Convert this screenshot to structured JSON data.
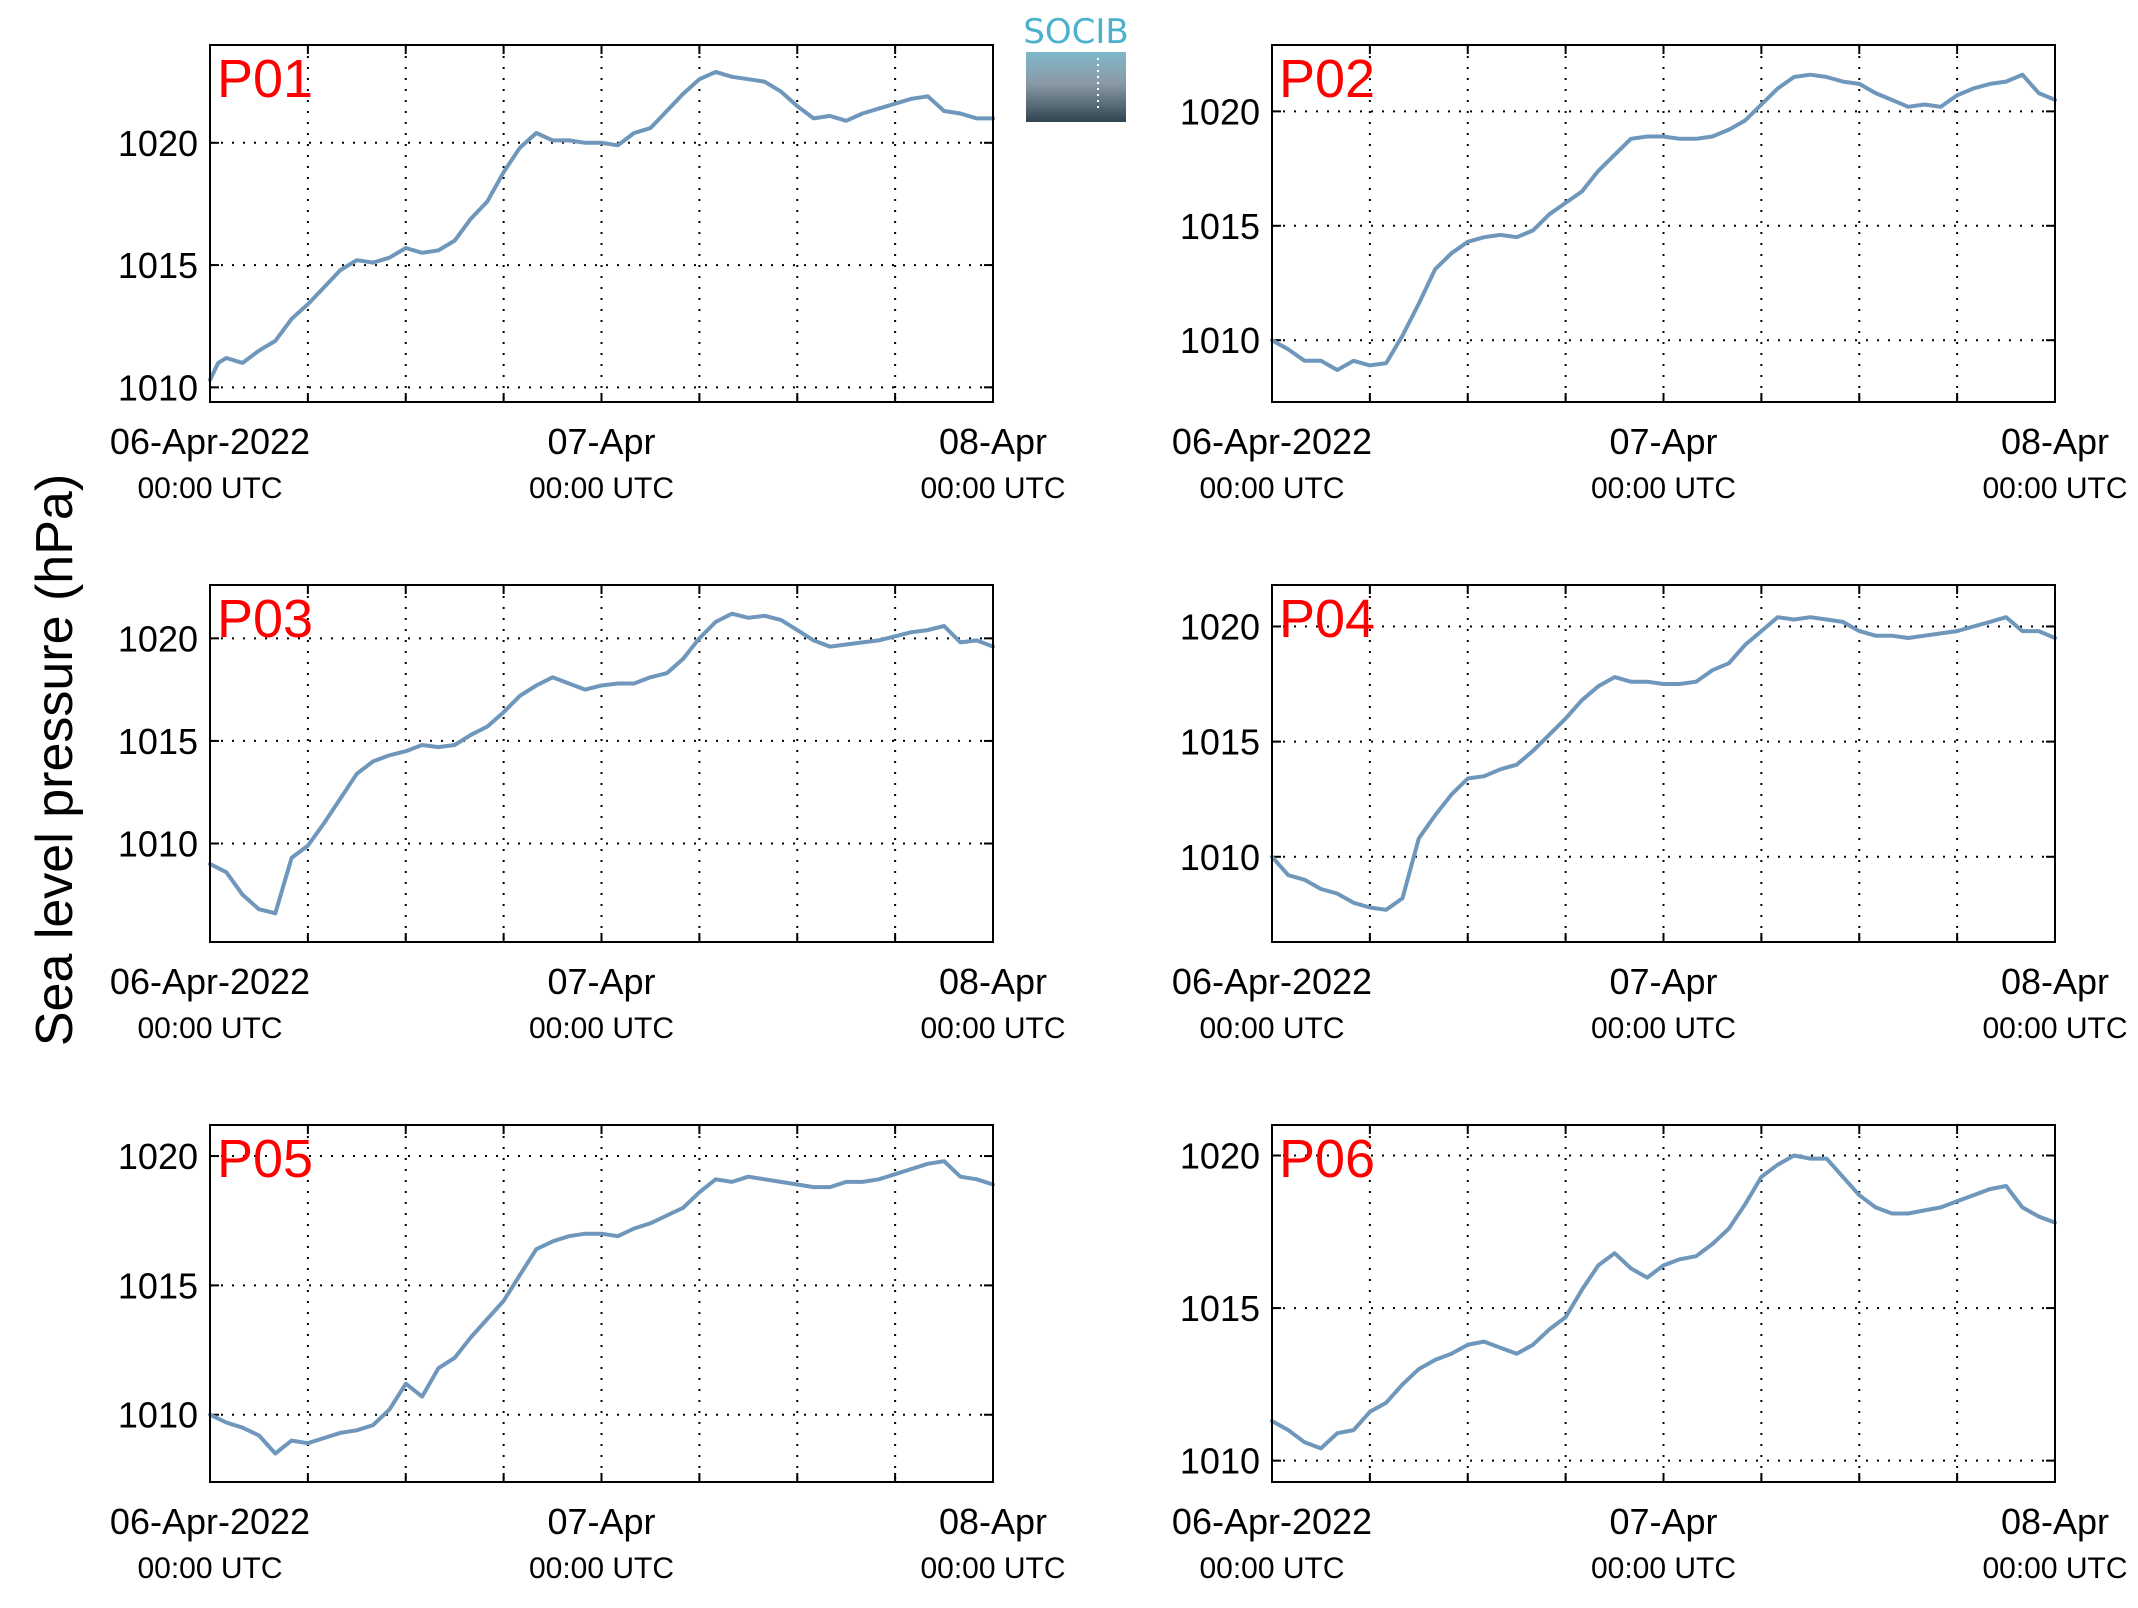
{
  "figure": {
    "ylabel": "Sea level pressure (hPa)",
    "logo_text": "SOCIB",
    "colors": {
      "line": "#6f97bb",
      "panel_label": "#ff0000",
      "axis": "#000000"
    }
  },
  "chart_data": [
    {
      "type": "line",
      "title": "P01",
      "x_ticks": [
        {
          "value": "2022-04-06T00:00Z",
          "label": "06-Apr-2022",
          "sublabel": "00:00 UTC"
        },
        {
          "value": "2022-04-07T00:00Z",
          "label": "07-Apr",
          "sublabel": "00:00 UTC"
        },
        {
          "value": "2022-04-08T00:00Z",
          "label": "08-Apr",
          "sublabel": "00:00 UTC"
        }
      ],
      "x_grid_hours": [
        6,
        12,
        18,
        24,
        30,
        36,
        42
      ],
      "xlim": [
        "2022-04-06T00:00Z",
        "2022-04-08T00:00Z"
      ],
      "ylim": [
        1009.4,
        1024.0
      ],
      "yticks": [
        1010,
        1015,
        1020
      ],
      "grid": true,
      "series": [
        {
          "x_hours": [
            0,
            0.5,
            1,
            2,
            3,
            4,
            5,
            6,
            7,
            8,
            9,
            10,
            11,
            12,
            13,
            14,
            15,
            16,
            17,
            18,
            19,
            20,
            21,
            22,
            23,
            24,
            25,
            26,
            27,
            28,
            29,
            30,
            31,
            32,
            33,
            34,
            35,
            36,
            37,
            38,
            39,
            40,
            41,
            42,
            43,
            44,
            45,
            46,
            47,
            48
          ],
          "values": [
            1010.3,
            1011.0,
            1011.2,
            1011.0,
            1011.5,
            1011.9,
            1012.8,
            1013.4,
            1014.1,
            1014.8,
            1015.2,
            1015.1,
            1015.3,
            1015.7,
            1015.5,
            1015.6,
            1016.0,
            1016.9,
            1017.6,
            1018.8,
            1019.8,
            1020.4,
            1020.1,
            1020.1,
            1020.0,
            1020.0,
            1019.9,
            1020.4,
            1020.6,
            1021.3,
            1022.0,
            1022.6,
            1022.9,
            1022.7,
            1022.6,
            1022.5,
            1022.1,
            1021.5,
            1021.0,
            1021.1,
            1020.9,
            1021.2,
            1021.4,
            1021.6,
            1021.8,
            1021.9,
            1021.3,
            1021.2,
            1021.0,
            1021.0
          ]
        }
      ]
    },
    {
      "type": "line",
      "title": "P02",
      "x_ticks": [
        {
          "value": "2022-04-06T00:00Z",
          "label": "06-Apr-2022",
          "sublabel": "00:00 UTC"
        },
        {
          "value": "2022-04-07T00:00Z",
          "label": "07-Apr",
          "sublabel": "00:00 UTC"
        },
        {
          "value": "2022-04-08T00:00Z",
          "label": "08-Apr",
          "sublabel": "00:00 UTC"
        }
      ],
      "x_grid_hours": [
        6,
        12,
        18,
        24,
        30,
        36,
        42
      ],
      "xlim": [
        "2022-04-06T00:00Z",
        "2022-04-08T00:00Z"
      ],
      "ylim": [
        1007.3,
        1022.9
      ],
      "yticks": [
        1010,
        1015,
        1020
      ],
      "grid": true,
      "series": [
        {
          "x_hours": [
            0,
            1,
            2,
            3,
            4,
            5,
            6,
            7,
            8,
            9,
            10,
            11,
            12,
            13,
            14,
            15,
            16,
            17,
            18,
            19,
            20,
            21,
            22,
            23,
            24,
            25,
            26,
            27,
            28,
            29,
            30,
            31,
            32,
            33,
            34,
            35,
            36,
            37,
            38,
            39,
            40,
            41,
            42,
            43,
            44,
            45,
            46,
            47,
            48
          ],
          "values": [
            1010.0,
            1009.6,
            1009.1,
            1009.1,
            1008.7,
            1009.1,
            1008.9,
            1009.0,
            1010.2,
            1011.6,
            1013.1,
            1013.8,
            1014.3,
            1014.5,
            1014.6,
            1014.5,
            1014.8,
            1015.5,
            1016.0,
            1016.5,
            1017.4,
            1018.1,
            1018.8,
            1018.9,
            1018.9,
            1018.8,
            1018.8,
            1018.9,
            1019.2,
            1019.6,
            1020.3,
            1021.0,
            1021.5,
            1021.6,
            1021.5,
            1021.3,
            1021.2,
            1020.8,
            1020.5,
            1020.2,
            1020.3,
            1020.2,
            1020.7,
            1021.0,
            1021.2,
            1021.3,
            1021.6,
            1020.8,
            1020.5
          ]
        }
      ]
    },
    {
      "type": "line",
      "title": "P03",
      "x_ticks": [
        {
          "value": "2022-04-06T00:00Z",
          "label": "06-Apr-2022",
          "sublabel": "00:00 UTC"
        },
        {
          "value": "2022-04-07T00:00Z",
          "label": "07-Apr",
          "sublabel": "00:00 UTC"
        },
        {
          "value": "2022-04-08T00:00Z",
          "label": "08-Apr",
          "sublabel": "00:00 UTC"
        }
      ],
      "x_grid_hours": [
        6,
        12,
        18,
        24,
        30,
        36,
        42
      ],
      "xlim": [
        "2022-04-06T00:00Z",
        "2022-04-08T00:00Z"
      ],
      "ylim": [
        1005.2,
        1022.6
      ],
      "yticks": [
        1010,
        1015,
        1020
      ],
      "grid": true,
      "series": [
        {
          "x_hours": [
            0,
            1,
            2,
            3,
            4,
            5,
            6,
            7,
            8,
            9,
            10,
            11,
            12,
            13,
            14,
            15,
            16,
            17,
            18,
            19,
            20,
            21,
            22,
            23,
            24,
            25,
            26,
            27,
            28,
            29,
            30,
            31,
            32,
            33,
            34,
            35,
            36,
            37,
            38,
            39,
            40,
            41,
            42,
            43,
            44,
            45,
            46,
            47,
            48
          ],
          "values": [
            1009.0,
            1008.6,
            1007.5,
            1006.8,
            1006.6,
            1009.3,
            1009.9,
            1011.0,
            1012.2,
            1013.4,
            1014.0,
            1014.3,
            1014.5,
            1014.8,
            1014.7,
            1014.8,
            1015.3,
            1015.7,
            1016.4,
            1017.2,
            1017.7,
            1018.1,
            1017.8,
            1017.5,
            1017.7,
            1017.8,
            1017.8,
            1018.1,
            1018.3,
            1019.0,
            1020.0,
            1020.8,
            1021.2,
            1021.0,
            1021.1,
            1020.9,
            1020.4,
            1019.9,
            1019.6,
            1019.7,
            1019.8,
            1019.9,
            1020.1,
            1020.3,
            1020.4,
            1020.6,
            1019.8,
            1019.9,
            1019.6
          ]
        }
      ]
    },
    {
      "type": "line",
      "title": "P04",
      "x_ticks": [
        {
          "value": "2022-04-06T00:00Z",
          "label": "06-Apr-2022",
          "sublabel": "00:00 UTC"
        },
        {
          "value": "2022-04-07T00:00Z",
          "label": "07-Apr",
          "sublabel": "00:00 UTC"
        },
        {
          "value": "2022-04-08T00:00Z",
          "label": "08-Apr",
          "sublabel": "00:00 UTC"
        }
      ],
      "x_grid_hours": [
        6,
        12,
        18,
        24,
        30,
        36,
        42
      ],
      "xlim": [
        "2022-04-06T00:00Z",
        "2022-04-08T00:00Z"
      ],
      "ylim": [
        1006.3,
        1021.8
      ],
      "yticks": [
        1010,
        1015,
        1020
      ],
      "grid": true,
      "series": [
        {
          "x_hours": [
            0,
            1,
            2,
            3,
            4,
            5,
            6,
            7,
            8,
            9,
            10,
            11,
            12,
            13,
            14,
            15,
            16,
            17,
            18,
            19,
            20,
            21,
            22,
            23,
            24,
            25,
            26,
            27,
            28,
            29,
            30,
            31,
            32,
            33,
            34,
            35,
            36,
            37,
            38,
            39,
            40,
            41,
            42,
            43,
            44,
            45,
            46,
            47,
            48
          ],
          "values": [
            1010.0,
            1009.2,
            1009.0,
            1008.6,
            1008.4,
            1008.0,
            1007.8,
            1007.7,
            1008.2,
            1010.8,
            1011.8,
            1012.7,
            1013.4,
            1013.5,
            1013.8,
            1014.0,
            1014.6,
            1015.3,
            1016.0,
            1016.8,
            1017.4,
            1017.8,
            1017.6,
            1017.6,
            1017.5,
            1017.5,
            1017.6,
            1018.1,
            1018.4,
            1019.2,
            1019.8,
            1020.4,
            1020.3,
            1020.4,
            1020.3,
            1020.2,
            1019.8,
            1019.6,
            1019.6,
            1019.5,
            1019.6,
            1019.7,
            1019.8,
            1020.0,
            1020.2,
            1020.4,
            1019.8,
            1019.8,
            1019.5
          ]
        }
      ]
    },
    {
      "type": "line",
      "title": "P05",
      "x_ticks": [
        {
          "value": "2022-04-06T00:00Z",
          "label": "06-Apr-2022",
          "sublabel": "00:00 UTC"
        },
        {
          "value": "2022-04-07T00:00Z",
          "label": "07-Apr",
          "sublabel": "00:00 UTC"
        },
        {
          "value": "2022-04-08T00:00Z",
          "label": "08-Apr",
          "sublabel": "00:00 UTC"
        }
      ],
      "x_grid_hours": [
        6,
        12,
        18,
        24,
        30,
        36,
        42
      ],
      "xlim": [
        "2022-04-06T00:00Z",
        "2022-04-08T00:00Z"
      ],
      "ylim": [
        1007.4,
        1021.2
      ],
      "yticks": [
        1010,
        1015,
        1020
      ],
      "grid": true,
      "series": [
        {
          "x_hours": [
            0,
            1,
            2,
            3,
            4,
            5,
            6,
            7,
            8,
            9,
            10,
            11,
            12,
            13,
            14,
            15,
            16,
            17,
            18,
            19,
            20,
            21,
            22,
            23,
            24,
            25,
            26,
            27,
            28,
            29,
            30,
            31,
            32,
            33,
            34,
            35,
            36,
            37,
            38,
            39,
            40,
            41,
            42,
            43,
            44,
            45,
            46,
            47,
            48
          ],
          "values": [
            1010.0,
            1009.7,
            1009.5,
            1009.2,
            1008.5,
            1009.0,
            1008.9,
            1009.1,
            1009.3,
            1009.4,
            1009.6,
            1010.2,
            1011.2,
            1010.7,
            1011.8,
            1012.2,
            1013.0,
            1013.7,
            1014.4,
            1015.4,
            1016.4,
            1016.7,
            1016.9,
            1017.0,
            1017.0,
            1016.9,
            1017.2,
            1017.4,
            1017.7,
            1018.0,
            1018.6,
            1019.1,
            1019.0,
            1019.2,
            1019.1,
            1019.0,
            1018.9,
            1018.8,
            1018.8,
            1019.0,
            1019.0,
            1019.1,
            1019.3,
            1019.5,
            1019.7,
            1019.8,
            1019.2,
            1019.1,
            1018.9
          ]
        }
      ]
    },
    {
      "type": "line",
      "title": "P06",
      "x_ticks": [
        {
          "value": "2022-04-06T00:00Z",
          "label": "06-Apr-2022",
          "sublabel": "00:00 UTC"
        },
        {
          "value": "2022-04-07T00:00Z",
          "label": "07-Apr",
          "sublabel": "00:00 UTC"
        },
        {
          "value": "2022-04-08T00:00Z",
          "label": "08-Apr",
          "sublabel": "00:00 UTC"
        }
      ],
      "x_grid_hours": [
        6,
        12,
        18,
        24,
        30,
        36,
        42
      ],
      "xlim": [
        "2022-04-06T00:00Z",
        "2022-04-08T00:00Z"
      ],
      "ylim": [
        1009.3,
        1021.0
      ],
      "yticks": [
        1010,
        1015,
        1020
      ],
      "grid": true,
      "series": [
        {
          "x_hours": [
            0,
            1,
            2,
            3,
            4,
            5,
            6,
            7,
            8,
            9,
            10,
            11,
            12,
            13,
            14,
            15,
            16,
            17,
            18,
            19,
            20,
            21,
            22,
            23,
            24,
            25,
            26,
            27,
            28,
            29,
            30,
            31,
            32,
            33,
            34,
            35,
            36,
            37,
            38,
            39,
            40,
            41,
            42,
            43,
            44,
            45,
            46,
            47,
            48
          ],
          "values": [
            1011.3,
            1011.0,
            1010.6,
            1010.4,
            1010.9,
            1011.0,
            1011.6,
            1011.9,
            1012.5,
            1013.0,
            1013.3,
            1013.5,
            1013.8,
            1013.9,
            1013.7,
            1013.5,
            1013.8,
            1014.3,
            1014.7,
            1015.6,
            1016.4,
            1016.8,
            1016.3,
            1016.0,
            1016.4,
            1016.6,
            1016.7,
            1017.1,
            1017.6,
            1018.4,
            1019.3,
            1019.7,
            1020.0,
            1019.9,
            1019.9,
            1019.3,
            1018.7,
            1018.3,
            1018.1,
            1018.1,
            1018.2,
            1018.3,
            1018.5,
            1018.7,
            1018.9,
            1019.0,
            1018.3,
            1018.0,
            1017.8
          ]
        }
      ]
    }
  ]
}
